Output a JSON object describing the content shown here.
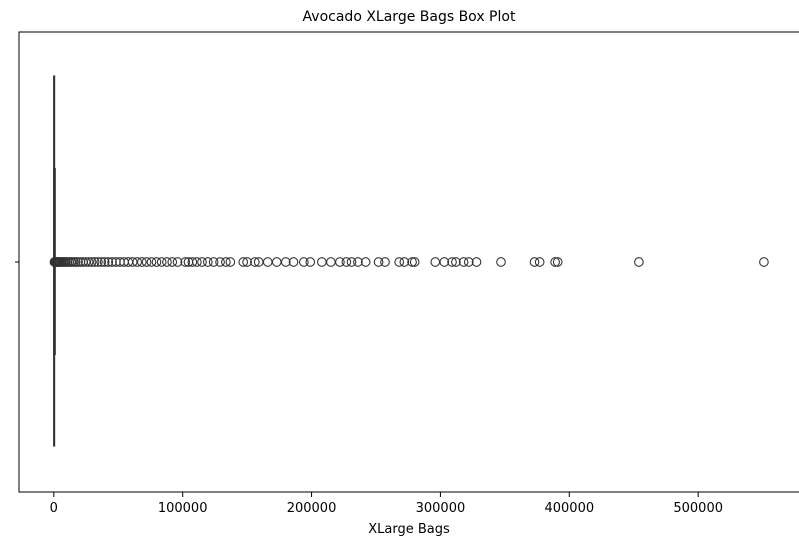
{
  "chart_data": {
    "type": "box",
    "title": "Avocado XLarge Bags Box Plot",
    "xlabel": "XLarge Bags",
    "ylabel": "",
    "xlim": [
      -27000,
      579000
    ],
    "x_ticks": [
      0,
      100000,
      200000,
      300000,
      400000,
      500000
    ],
    "x_tick_labels": [
      "0",
      "100000",
      "200000",
      "300000",
      "400000",
      "500000"
    ],
    "box": {
      "min": 0,
      "q1": 0,
      "median": 0,
      "q3": 133,
      "whisker_high": 332
    },
    "outliers": [
      500,
      900,
      1300,
      1800,
      2400,
      3000,
      3700,
      4500,
      5300,
      6200,
      7200,
      8300,
      9500,
      10800,
      12200,
      13700,
      15300,
      17000,
      18800,
      20700,
      22700,
      24800,
      27000,
      29300,
      31700,
      34200,
      36800,
      39500,
      42300,
      45200,
      48200,
      51300,
      54500,
      57800,
      61200,
      64700,
      68300,
      72000,
      75800,
      79700,
      83700,
      87800,
      91900,
      96000,
      102000,
      104500,
      107500,
      111000,
      115000,
      119500,
      124000,
      129000,
      133500,
      137000,
      147000,
      150000,
      156000,
      159000,
      166000,
      173000,
      180000,
      186000,
      194000,
      199000,
      208000,
      215000,
      222000,
      227000,
      231000,
      236000,
      242000,
      252000,
      257000,
      268000,
      272000,
      278000,
      280000,
      296000,
      303000,
      309000,
      312000,
      318000,
      322000,
      328000,
      347000,
      373000,
      377000,
      389000,
      391000,
      454000,
      551000
    ]
  }
}
